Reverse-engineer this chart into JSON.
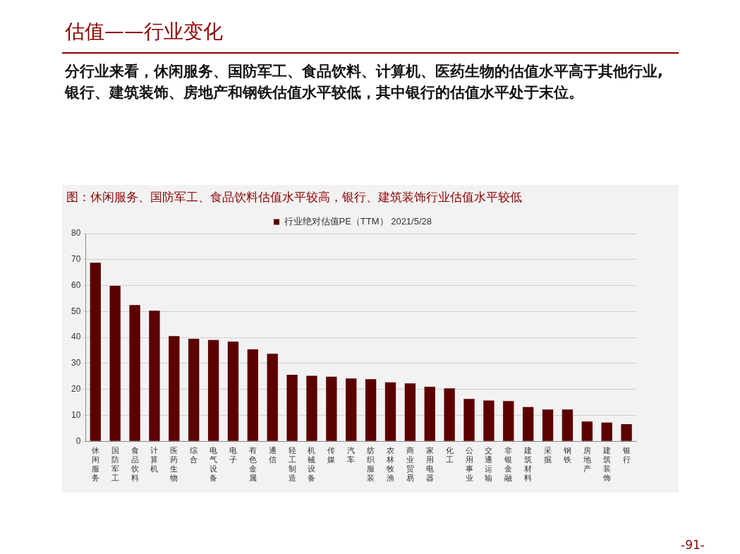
{
  "chart_data": {
    "type": "bar",
    "title": "图：休闲服务、国防军工、食品饮料估值水平较高，银行、建筑装饰行业估值水平较低",
    "annotations": [
      "估值——行业变化",
      "分行业来看，休闲服务、国防军工、食品饮料、计算机、医药生物的估值水平高于其他行业, 银行、建筑装饰、房地产和钢铁估值水平较低，其中银行的估值水平处于末位。",
      "-91-"
    ],
    "categories": [
      "休闲服务",
      "国防军工",
      "食品饮料",
      "计算机",
      "医药生物",
      "综合",
      "电气设备",
      "电子",
      "有色金属",
      "通信",
      "轻工制造",
      "机械设备",
      "传媒",
      "汽车",
      "纺织服装",
      "农林牧渔",
      "商业贸易",
      "家用电器",
      "化工",
      "公用事业",
      "交通运输",
      "非银金融",
      "建筑材料",
      "采掘",
      "钢铁",
      "房地产",
      "建筑装饰",
      "银行"
    ],
    "series": [
      {
        "name": "行业绝对估值PE（TTM） 2021/5/28",
        "color": "#5c0000",
        "values": [
          68.8,
          59.9,
          52.5,
          50.3,
          40.5,
          39.5,
          39.0,
          38.4,
          35.4,
          33.7,
          25.6,
          25.2,
          24.9,
          24.2,
          23.9,
          22.7,
          22.3,
          21.0,
          20.4,
          16.3,
          15.7,
          15.5,
          13.2,
          12.2,
          12.2,
          7.6,
          7.2,
          6.6
        ]
      }
    ],
    "ylim": [
      0,
      80
    ],
    "yticks": [
      0,
      10,
      20,
      30,
      40,
      50,
      60,
      70,
      80
    ],
    "grid": "y",
    "legend": "top"
  }
}
